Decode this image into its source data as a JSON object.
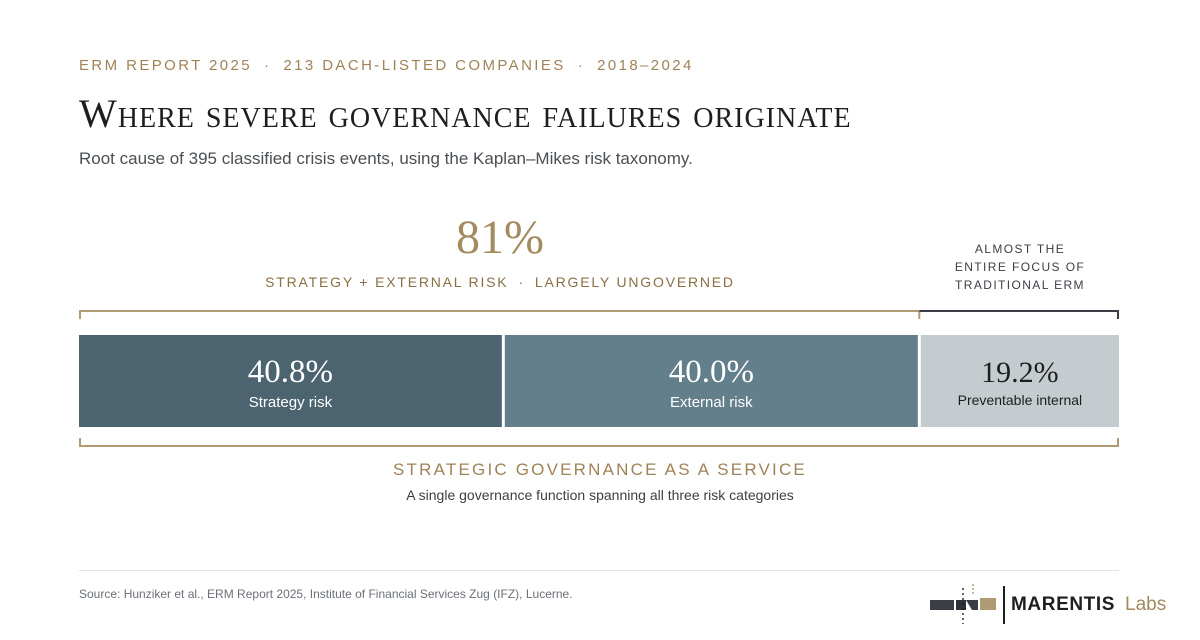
{
  "header": {
    "eyebrow": [
      "ERM REPORT 2025",
      "213 DACH-LISTED COMPANIES",
      "2018–2024"
    ],
    "separator": "·",
    "title": "Where severe governance failures originate",
    "subtitle": "Root cause of 395 classified crisis events, using the Kaplan–Mikes risk taxonomy."
  },
  "highlight": {
    "value": "81%",
    "caption_left": "STRATEGY + EXTERNAL RISK",
    "caption_sep": "·",
    "caption_right": "LARGELY UNGOVERNED"
  },
  "side_note": [
    "ALMOST THE",
    "ENTIRE FOCUS OF",
    "TRADITIONAL ERM"
  ],
  "chart_data": {
    "type": "bar",
    "orientation": "horizontal-stacked",
    "categories": [
      "Strategy risk",
      "External risk",
      "Preventable internal"
    ],
    "values": [
      40.8,
      40.0,
      19.2
    ],
    "value_labels": [
      "40.8%",
      "40.0%",
      "19.2%"
    ],
    "unit": "%",
    "colors": [
      "#4b6470",
      "#627f8b",
      "#c5ccd0"
    ],
    "label_colors": [
      "#ffffff",
      "#ffffff",
      "#1e1e1e"
    ]
  },
  "service": {
    "title": "STRATEGIC GOVERNANCE AS A SERVICE",
    "subtitle": "A single governance function spanning all three risk categories"
  },
  "footer": {
    "source": "Source: Hunziker et al., ERM Report 2025, Institute of Financial Services Zug (IFZ), Lucerne.",
    "brand": "MARENTIS",
    "brand_suffix": "Labs"
  },
  "colors": {
    "accent": "#a38a5f",
    "bracket_gold": "#b09a74",
    "bracket_dark": "#3b3f45"
  }
}
